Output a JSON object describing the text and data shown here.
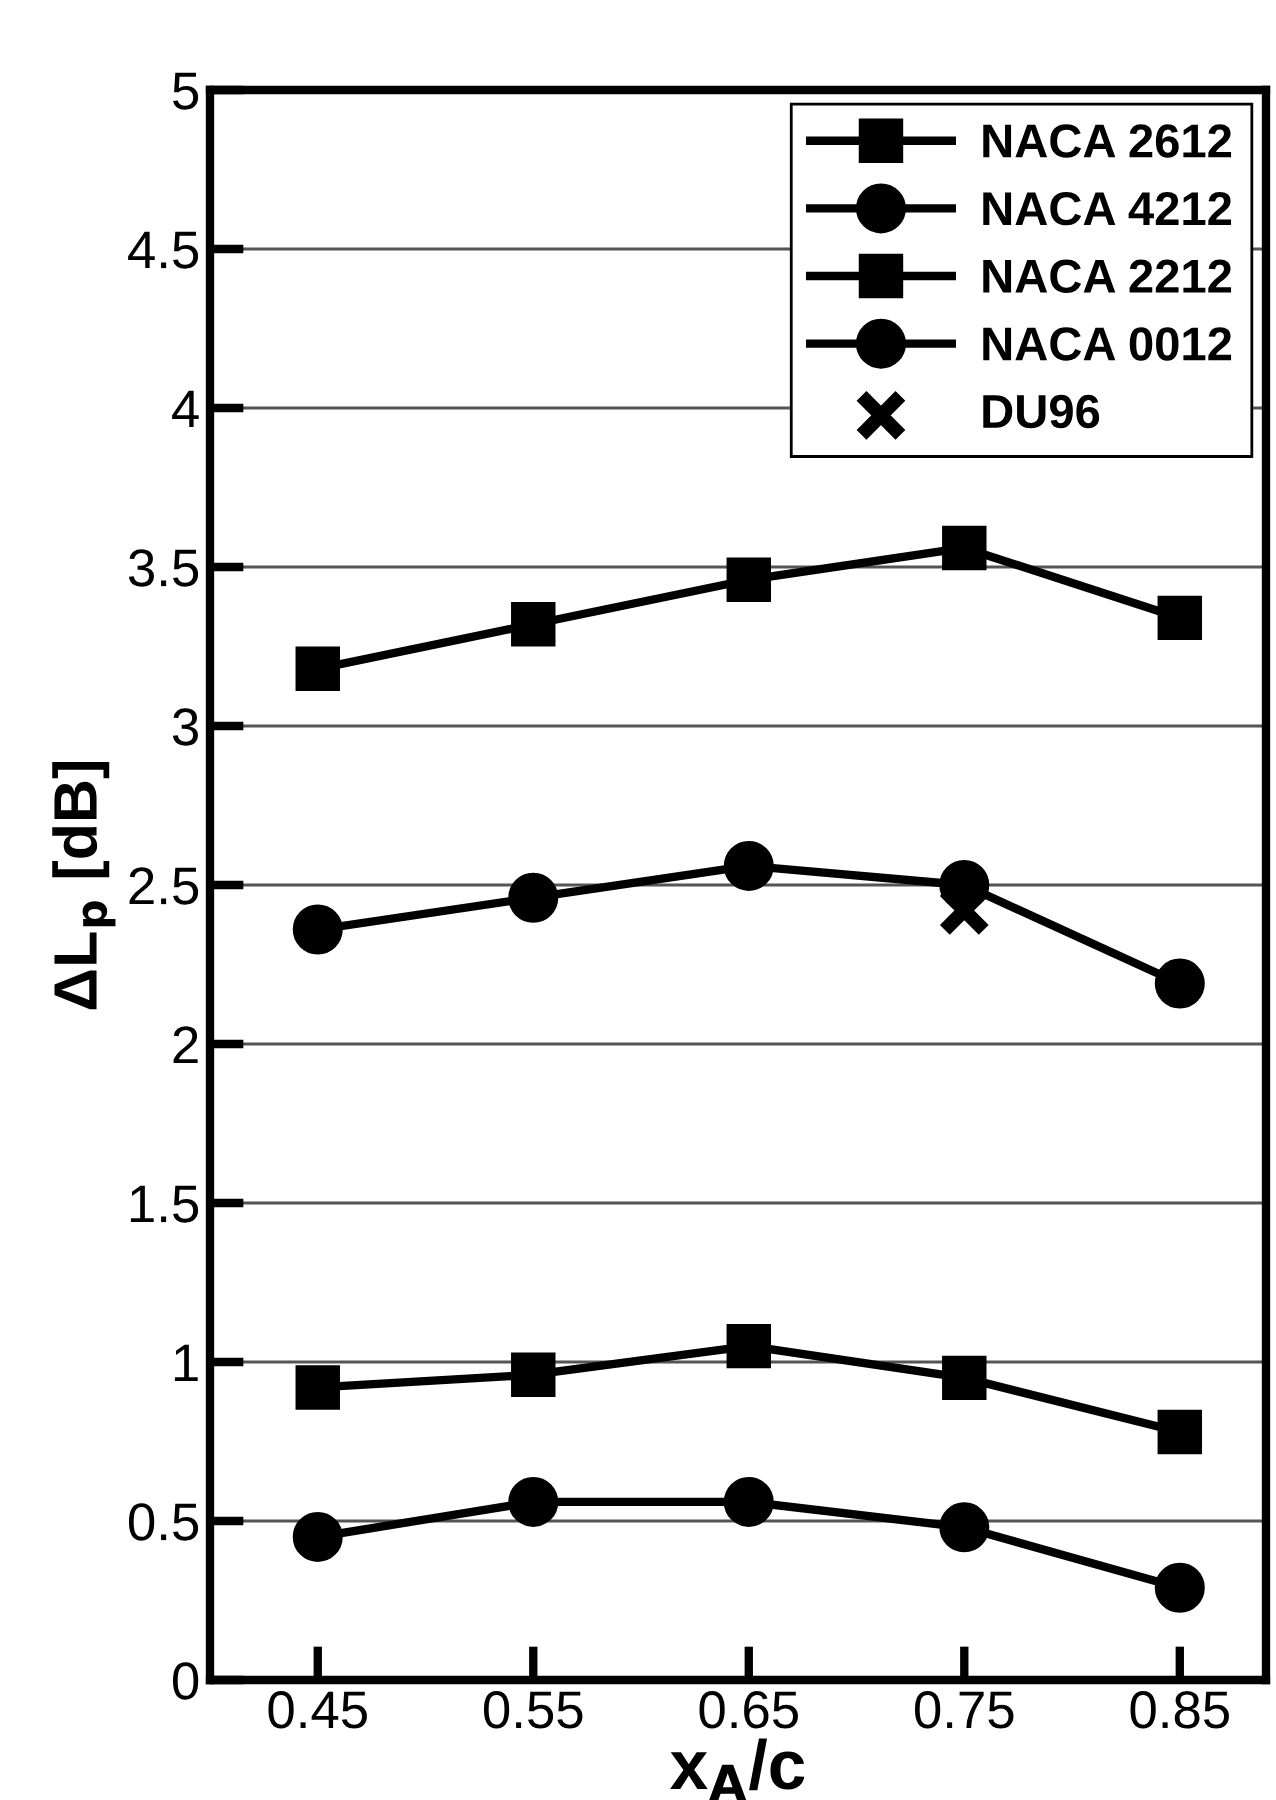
{
  "chart_data": {
    "type": "line",
    "xlabel": "x$_{A}$/c",
    "ylabel": "ΔL$_{p}$ [dB]",
    "xlim": [
      0.4,
      0.89
    ],
    "xticks": [
      0.45,
      0.55,
      0.65,
      0.75,
      0.85
    ],
    "ylim": [
      0,
      5
    ],
    "yticks": [
      0,
      0.5,
      1,
      1.5,
      2,
      2.5,
      3,
      3.5,
      4,
      4.5,
      5
    ],
    "grid": "y",
    "legend": "top right",
    "x": [
      0.45,
      0.55,
      0.65,
      0.75,
      0.85
    ],
    "series": [
      {
        "name": "NACA 2612",
        "color": "#000000",
        "marker": "square",
        "values": [
          3.18,
          3.32,
          3.46,
          3.56,
          3.34
        ]
      },
      {
        "name": "NACA 4212",
        "color": "#000000",
        "marker": "circle",
        "values": [
          2.36,
          2.46,
          2.56,
          2.5,
          2.19
        ]
      },
      {
        "name": "NACA 2212",
        "color": "#000000",
        "marker": "square",
        "values": [
          0.92,
          0.96,
          1.05,
          0.95,
          0.78
        ]
      },
      {
        "name": "NACA 0012",
        "color": "#000000",
        "marker": "circle",
        "values": [
          0.45,
          0.56,
          0.56,
          0.48,
          0.29
        ]
      },
      {
        "name": "DU96",
        "type": "scatter",
        "color": "#000000",
        "marker": "cross",
        "x": [
          0.75
        ],
        "values": [
          2.42
        ]
      }
    ]
  }
}
